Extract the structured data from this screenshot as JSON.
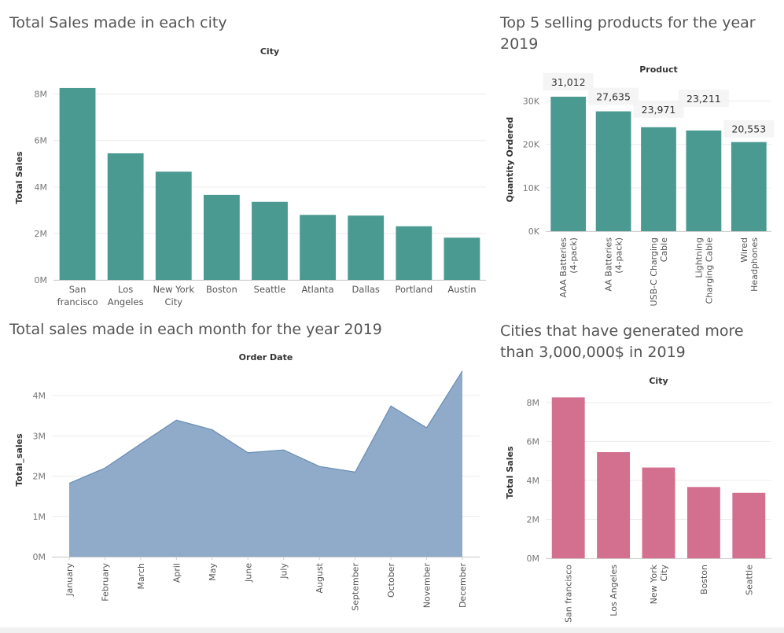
{
  "colors": {
    "teal": "#4a9a92",
    "area": "#89a7c6",
    "area_line": "#6a8db2",
    "pink": "#d4708f",
    "grid": "#ececec",
    "axis": "#cfcfcf"
  },
  "panels": {
    "city_sales": {
      "title": "Total Sales made in each city"
    },
    "top_products": {
      "title": "Top 5 selling products for the year\n2019"
    },
    "monthly_sales": {
      "title": "Total sales made in each month for the year 2019"
    },
    "cities_3m": {
      "title": "Cities that have generated more\nthan 3,000,000$ in 2019"
    }
  },
  "chart_data": [
    {
      "type": "bar",
      "header": "City",
      "ylabel": "Total Sales",
      "categories": [
        [
          "San",
          "francisco"
        ],
        [
          "Los",
          "Angeles"
        ],
        [
          "New York",
          "City"
        ],
        [
          "Boston"
        ],
        [
          "Seattle"
        ],
        [
          "Atlanta"
        ],
        [
          "Dallas"
        ],
        [
          "Portland"
        ],
        [
          "Austin"
        ]
      ],
      "values": [
        8260000,
        5450000,
        4660000,
        3660000,
        3360000,
        2800000,
        2770000,
        2310000,
        1820000
      ],
      "ylim": [
        0,
        8800000
      ],
      "yticks": [
        {
          "v": 0,
          "label": "0M"
        },
        {
          "v": 2000000,
          "label": "2M"
        },
        {
          "v": 4000000,
          "label": "4M"
        },
        {
          "v": 6000000,
          "label": "6M"
        },
        {
          "v": 8000000,
          "label": "8M"
        }
      ],
      "grid": true
    },
    {
      "type": "bar",
      "header": "Product",
      "ylabel": "Quantity Ordered",
      "categories": [
        [
          "AAA Batteries",
          "(4-pack)"
        ],
        [
          "AA Batteries",
          "(4-pack)"
        ],
        [
          "USB-C Charging",
          "Cable"
        ],
        [
          "Lightning",
          "Charging Cable"
        ],
        [
          "Wired",
          "Headphones"
        ]
      ],
      "values": [
        31012,
        27635,
        23971,
        23211,
        20553
      ],
      "data_labels": [
        "31,012",
        "27,635",
        "23,971",
        "23,211",
        "20,553"
      ],
      "ylim": [
        0,
        33000
      ],
      "yticks": [
        {
          "v": 0,
          "label": "0K"
        },
        {
          "v": 10000,
          "label": "10K"
        },
        {
          "v": 20000,
          "label": "20K"
        },
        {
          "v": 30000,
          "label": "30K"
        }
      ],
      "grid": true
    },
    {
      "type": "area",
      "header": "Order Date",
      "ylabel": "Total_sales",
      "categories": [
        "January",
        "February",
        "March",
        "April",
        "May",
        "June",
        "July",
        "August",
        "September",
        "October",
        "November",
        "December"
      ],
      "values": [
        1820000,
        2200000,
        2800000,
        3390000,
        3150000,
        2580000,
        2650000,
        2240000,
        2100000,
        3740000,
        3200000,
        4610000
      ],
      "ylim": [
        0,
        4800000
      ],
      "yticks": [
        {
          "v": 0,
          "label": "0M"
        },
        {
          "v": 1000000,
          "label": "1M"
        },
        {
          "v": 2000000,
          "label": "2M"
        },
        {
          "v": 3000000,
          "label": "3M"
        },
        {
          "v": 4000000,
          "label": "4M"
        }
      ],
      "grid": true
    },
    {
      "type": "bar",
      "header": "City",
      "ylabel": "Total Sales",
      "categories": [
        [
          "San francisco"
        ],
        [
          "Los Angeles"
        ],
        [
          "New York",
          "City"
        ],
        [
          "Boston"
        ],
        [
          "Seattle"
        ]
      ],
      "values": [
        8260000,
        5450000,
        4660000,
        3660000,
        3360000
      ],
      "ylim": [
        0,
        8800000
      ],
      "yticks": [
        {
          "v": 0,
          "label": "0M"
        },
        {
          "v": 2000000,
          "label": "2M"
        },
        {
          "v": 4000000,
          "label": "4M"
        },
        {
          "v": 6000000,
          "label": "6M"
        },
        {
          "v": 8000000,
          "label": "8M"
        }
      ],
      "grid": true
    }
  ]
}
